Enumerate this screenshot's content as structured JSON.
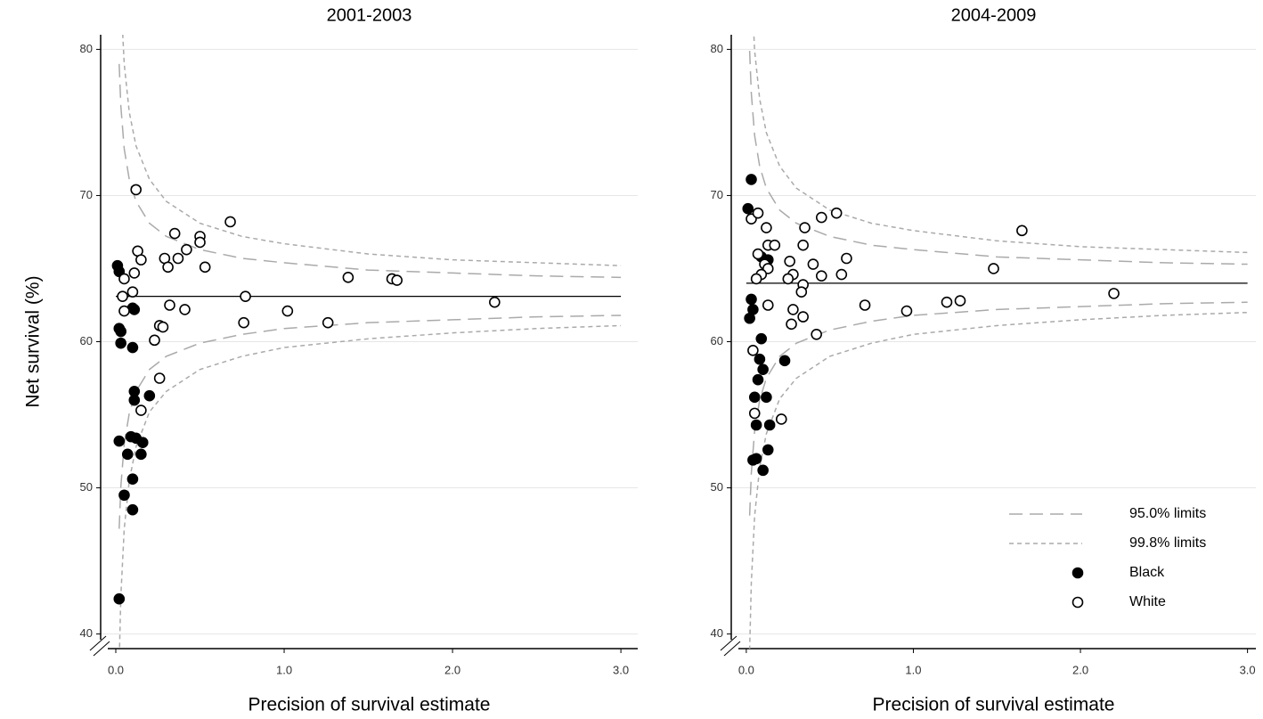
{
  "chart_data": [
    {
      "type": "scatter",
      "title": "2001-2003",
      "xlabel": "Precision of survival estimate",
      "ylabel": "Net survival (%)",
      "xlim": [
        -0.09,
        3.1
      ],
      "ylim": [
        39,
        81
      ],
      "xticks": [
        {
          "value": 0,
          "label": "0.0"
        },
        {
          "value": 1,
          "label": "1.0"
        },
        {
          "value": 2,
          "label": "2.0"
        },
        {
          "value": 3,
          "label": "3.0"
        }
      ],
      "yticks": [
        40,
        50,
        60,
        70,
        80
      ],
      "grid": true,
      "hline": 63.1,
      "limits_x": [
        0.02,
        0.03,
        0.05,
        0.08,
        0.12,
        0.2,
        0.3,
        0.5,
        0.75,
        1,
        1.5,
        2,
        2.5,
        3
      ],
      "limits": [
        {
          "dash": "long",
          "upper": [
            79.0,
            76.1,
            73.2,
            71.1,
            69.6,
            68.1,
            67.2,
            66.3,
            65.7,
            65.4,
            64.9,
            64.7,
            64.5,
            64.4
          ],
          "lower": [
            47.2,
            50.1,
            53.0,
            55.1,
            56.6,
            58.1,
            59.0,
            59.9,
            60.5,
            60.9,
            61.3,
            61.5,
            61.7,
            61.8
          ]
        },
        {
          "dash": "short",
          "upper": [
            88.2,
            83.6,
            79.0,
            75.7,
            73.4,
            71.1,
            69.6,
            68.1,
            67.2,
            66.7,
            66.0,
            65.6,
            65.4,
            65.2
          ],
          "lower": [
            38.0,
            42.6,
            47.2,
            50.5,
            52.8,
            55.2,
            56.6,
            58.1,
            59.0,
            59.6,
            60.2,
            60.6,
            60.9,
            61.1
          ]
        }
      ],
      "series": [
        {
          "marker": "filled",
          "x": [
            0.01,
            0.02,
            0.02,
            0.03,
            0.03,
            0.1,
            0.11,
            0.1,
            0.11,
            0.11,
            0.2,
            0.02,
            0.09,
            0.12,
            0.16,
            0.07,
            0.15,
            0.05,
            0.1,
            0.1,
            0.02
          ],
          "values": [
            65.2,
            64.8,
            60.9,
            60.7,
            59.9,
            62.3,
            62.2,
            59.6,
            56.6,
            56.0,
            56.3,
            53.2,
            53.5,
            53.4,
            53.1,
            52.3,
            52.3,
            49.5,
            50.6,
            48.5,
            42.4
          ]
        },
        {
          "marker": "open",
          "x": [
            0.12,
            0.13,
            0.15,
            0.11,
            0.05,
            0.1,
            0.04,
            0.05,
            0.35,
            0.37,
            0.29,
            0.31,
            0.42,
            0.5,
            0.5,
            0.53,
            0.68,
            0.32,
            0.41,
            0.26,
            0.28,
            0.23,
            0.15,
            0.26,
            0.77,
            0.76,
            1.02,
            1.26,
            1.38,
            1.64,
            1.67,
            2.25
          ],
          "values": [
            70.4,
            66.2,
            65.6,
            64.7,
            64.3,
            63.4,
            63.1,
            62.1,
            67.4,
            65.7,
            65.7,
            65.1,
            66.3,
            67.2,
            66.8,
            65.1,
            68.2,
            62.5,
            62.2,
            61.1,
            61.0,
            60.1,
            55.3,
            57.5,
            63.1,
            61.3,
            62.1,
            61.3,
            64.4,
            64.3,
            64.2,
            62.7
          ]
        }
      ]
    },
    {
      "type": "scatter",
      "title": "2004-2009",
      "xlabel": "Precision of survival estimate",
      "xlim": [
        -0.09,
        3.05
      ],
      "ylim": [
        39,
        81
      ],
      "xticks": [
        {
          "value": 0,
          "label": "0.0"
        },
        {
          "value": 1,
          "label": "1.0"
        },
        {
          "value": 2,
          "label": "2.0"
        },
        {
          "value": 3,
          "label": "3.0"
        }
      ],
      "yticks": [
        40,
        50,
        60,
        70,
        80
      ],
      "grid": true,
      "hline": 64.0,
      "legend": "lower right",
      "limits_x": [
        0.02,
        0.03,
        0.05,
        0.08,
        0.12,
        0.2,
        0.3,
        0.5,
        0.75,
        1,
        1.5,
        2,
        2.5,
        3
      ],
      "limits": [
        {
          "name": "95.0% limits",
          "dash": "long",
          "upper": [
            79.9,
            77.0,
            74.1,
            72.0,
            70.5,
            69.0,
            68.1,
            67.2,
            66.6,
            66.3,
            65.8,
            65.6,
            65.4,
            65.3
          ],
          "lower": [
            48.1,
            51.0,
            53.9,
            56.0,
            57.5,
            59.0,
            59.9,
            60.8,
            61.4,
            61.8,
            62.2,
            62.4,
            62.6,
            62.7
          ]
        },
        {
          "name": "99.8% limits",
          "dash": "short",
          "upper": [
            89.1,
            84.5,
            79.9,
            76.6,
            74.3,
            72.0,
            70.5,
            69.0,
            68.1,
            67.6,
            66.9,
            66.5,
            66.3,
            66.1
          ],
          "lower": [
            38.9,
            43.5,
            48.1,
            51.4,
            53.7,
            56.1,
            57.5,
            59.0,
            59.9,
            60.5,
            61.1,
            61.5,
            61.8,
            62.0
          ]
        }
      ],
      "series": [
        {
          "name": "Black",
          "marker": "filled",
          "x": [
            0.03,
            0.01,
            0.03,
            0.04,
            0.02,
            0.09,
            0.11,
            0.13,
            0.09,
            0.08,
            0.07,
            0.1,
            0.05,
            0.12,
            0.06,
            0.14,
            0.13,
            0.06,
            0.04,
            0.1,
            0.23
          ],
          "values": [
            71.1,
            69.1,
            62.9,
            62.2,
            61.6,
            65.8,
            65.6,
            65.6,
            60.2,
            58.8,
            57.4,
            58.1,
            56.2,
            56.2,
            54.3,
            54.3,
            52.6,
            52.0,
            51.9,
            51.2,
            58.7
          ]
        },
        {
          "name": "White",
          "marker": "open",
          "x": [
            0.03,
            0.07,
            0.12,
            0.13,
            0.17,
            0.07,
            0.11,
            0.13,
            0.09,
            0.06,
            0.13,
            0.35,
            0.26,
            0.28,
            0.25,
            0.34,
            0.34,
            0.33,
            0.45,
            0.54,
            0.4,
            0.45,
            0.57,
            0.6,
            0.28,
            0.34,
            0.27,
            0.42,
            0.04,
            0.05,
            0.21,
            0.71,
            0.96,
            1.2,
            1.28,
            1.48,
            1.65,
            2.2
          ],
          "values": [
            68.4,
            68.8,
            67.8,
            66.6,
            66.6,
            66.0,
            65.3,
            65.0,
            64.6,
            64.3,
            62.5,
            67.8,
            65.5,
            64.6,
            64.3,
            66.6,
            63.9,
            63.4,
            68.5,
            68.8,
            65.3,
            64.5,
            64.6,
            65.7,
            62.2,
            61.7,
            61.2,
            60.5,
            59.4,
            55.1,
            54.7,
            62.5,
            62.1,
            62.7,
            62.8,
            65.0,
            67.6,
            63.3
          ]
        }
      ]
    }
  ]
}
